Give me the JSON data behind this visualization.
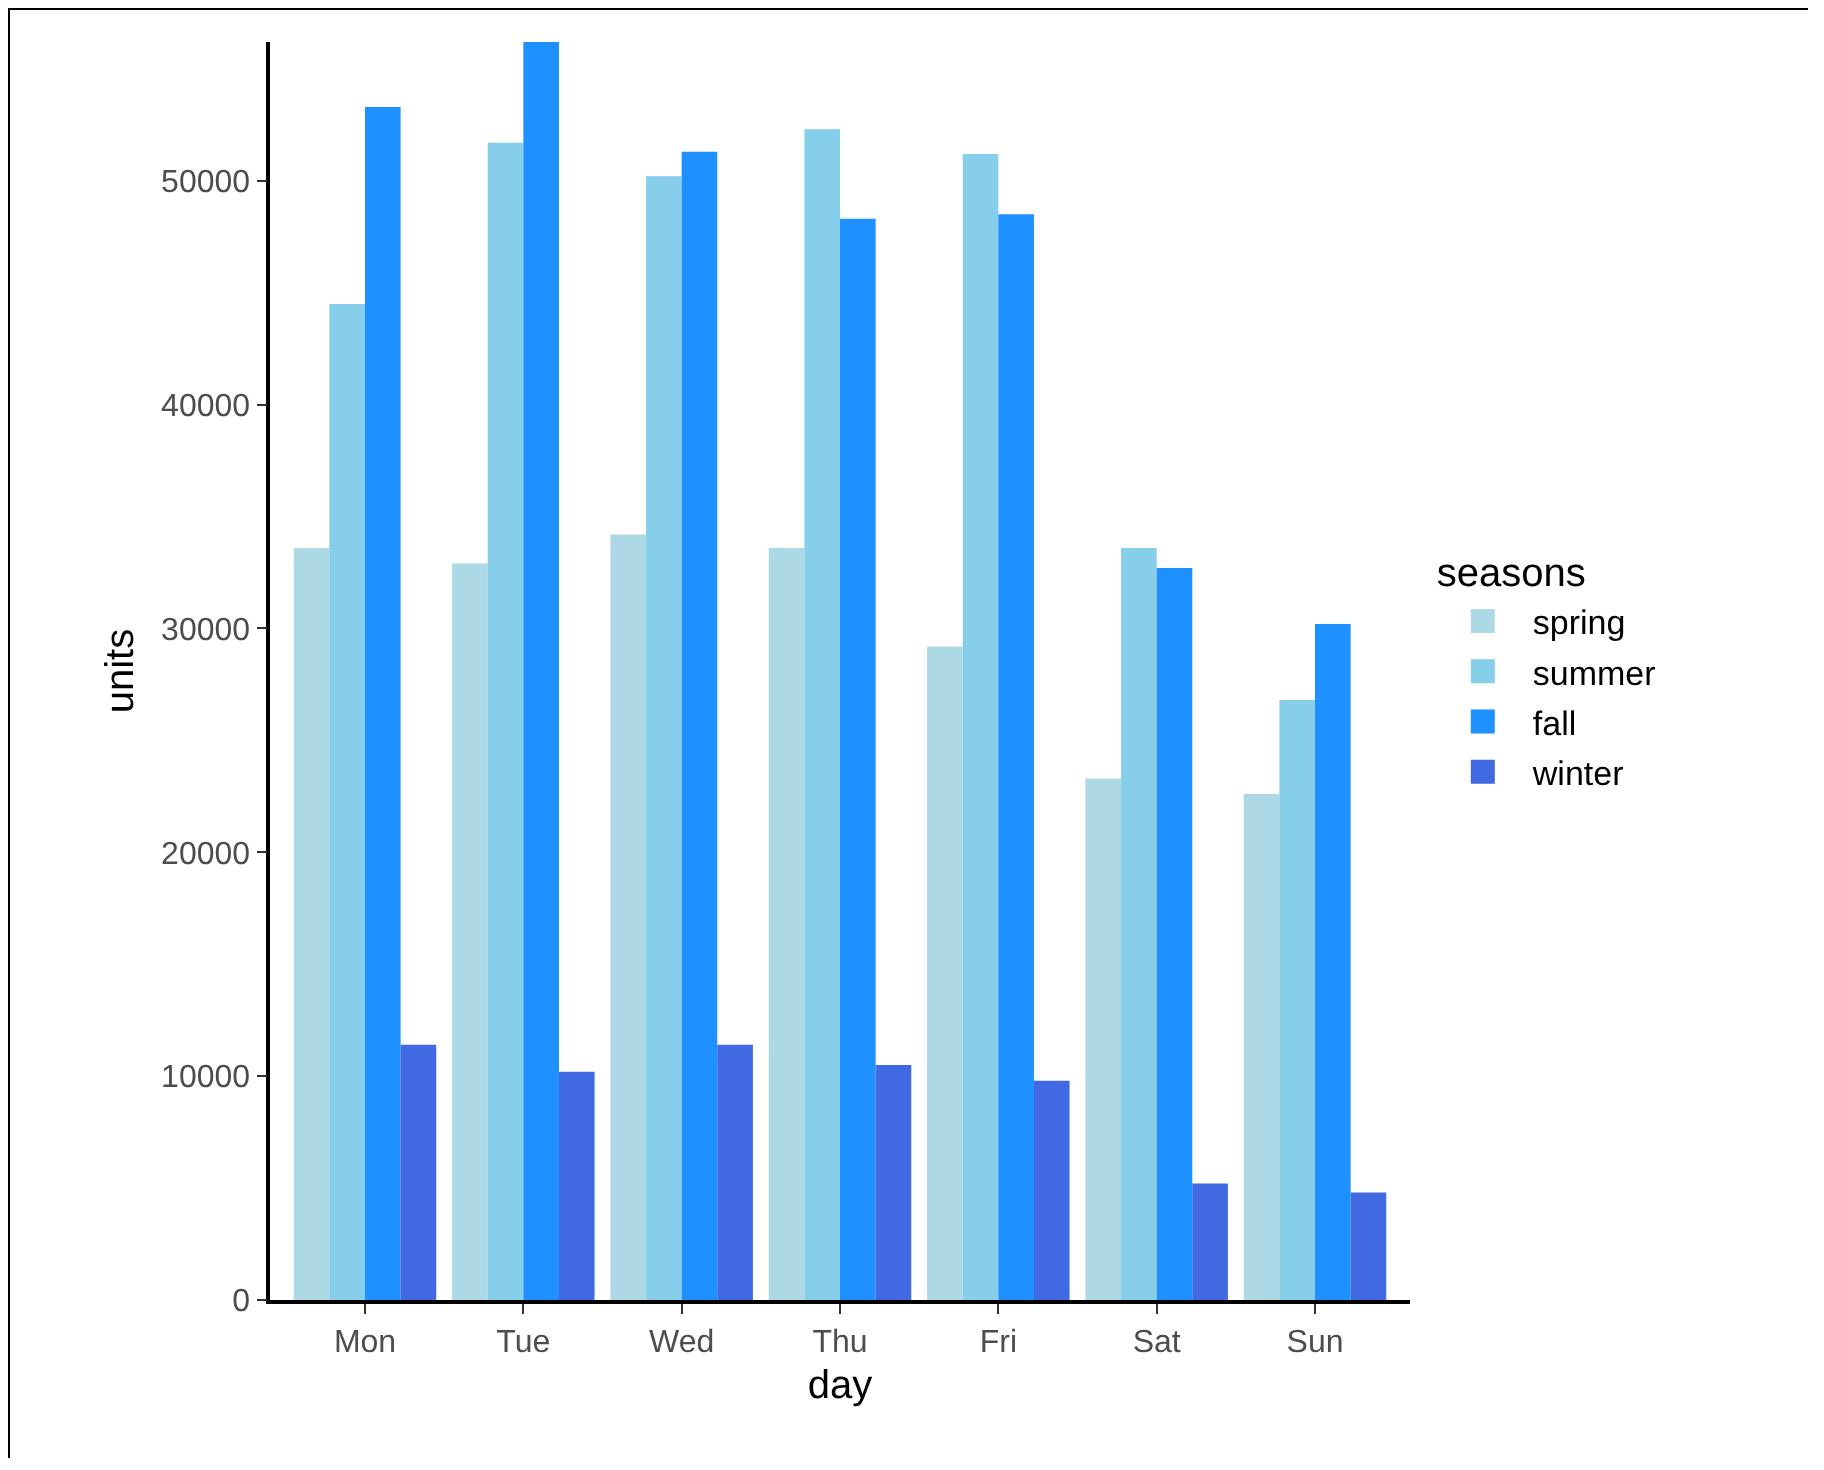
{
  "chart_data": {
    "type": "bar",
    "xlabel": "day",
    "ylabel": "units",
    "legend_title": "seasons",
    "categories": [
      "Mon",
      "Tue",
      "Wed",
      "Thu",
      "Fri",
      "Sat",
      "Sun"
    ],
    "series": [
      {
        "name": "spring",
        "color": "#add8e6",
        "values": [
          33600,
          32900,
          34200,
          33600,
          29200,
          23300,
          22600
        ]
      },
      {
        "name": "summer",
        "color": "#87ceeb",
        "values": [
          44500,
          51700,
          50200,
          52300,
          51200,
          33600,
          26800
        ]
      },
      {
        "name": "fall",
        "color": "#1e90ff",
        "values": [
          53300,
          56200,
          51300,
          48300,
          48500,
          32700,
          30200
        ]
      },
      {
        "name": "winter",
        "color": "#4169e1",
        "values": [
          11400,
          10200,
          11400,
          10500,
          9800,
          5200,
          4800
        ]
      }
    ],
    "ylim": [
      0,
      56200
    ],
    "yticks": [
      0,
      10000,
      20000,
      30000,
      40000,
      50000
    ],
    "grid": false,
    "legend": "right"
  }
}
